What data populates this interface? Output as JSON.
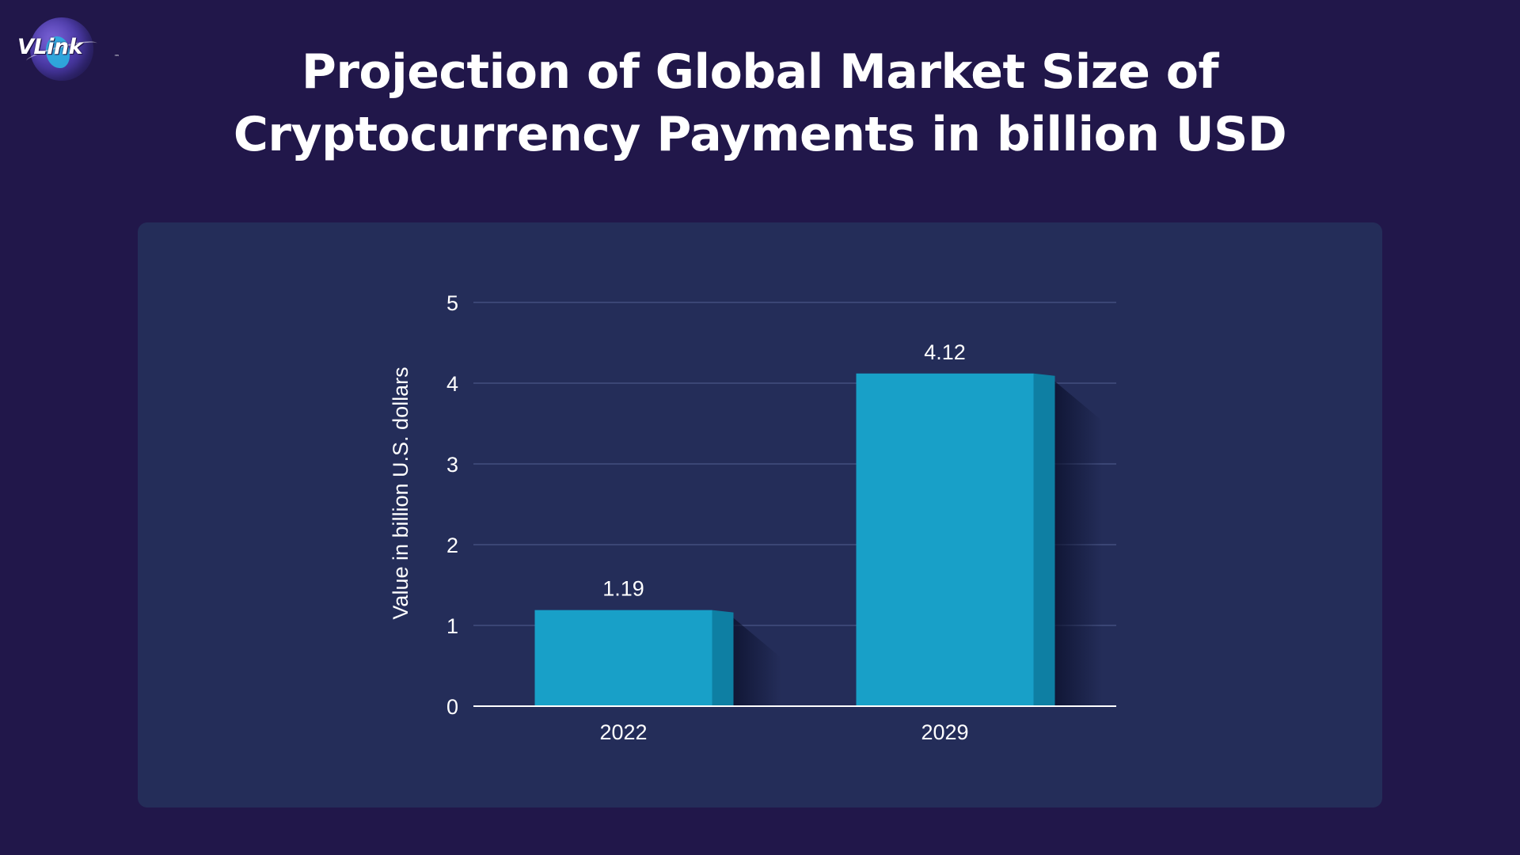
{
  "brand": {
    "logo_text": "VLink",
    "logo_tm": "™"
  },
  "header": {
    "title_line1": "Projection of Global Market Size of",
    "title_line2": "Cryptocurrency Payments in billion USD"
  },
  "colors": {
    "background": "#21174a",
    "panel": "#242d59",
    "bar_front": "#18a0c8",
    "bar_side": "#0e7fa3",
    "gridline": "#3b4675",
    "axis": "#ffffff"
  },
  "chart_data": {
    "type": "bar",
    "categories": [
      "2022",
      "2029"
    ],
    "values": [
      1.19,
      4.12
    ],
    "data_labels": [
      "1.19",
      "4.12"
    ],
    "title": "Projection of Global Market Size of Cryptocurrency Payments in billion USD",
    "xlabel": "",
    "ylabel": "Value in billion U.S. dollars",
    "ylim": [
      0,
      5
    ],
    "yticks": [
      "0",
      "1",
      "2",
      "3",
      "4",
      "5"
    ],
    "grid": true,
    "legend": "none"
  }
}
